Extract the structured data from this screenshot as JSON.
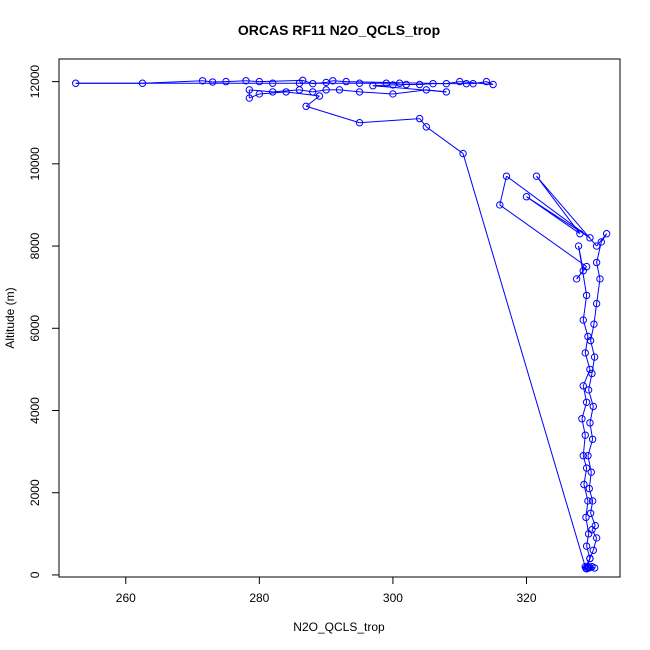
{
  "chart_data": {
    "type": "scatter",
    "title": "ORCAS RF11 N2O_QCLS_trop",
    "xlabel": "N2O_QCLS_trop",
    "ylabel": "Altitude (m)",
    "xlim": [
      250,
      334
    ],
    "ylim": [
      -50,
      12550
    ],
    "x_ticks": [
      260,
      280,
      300,
      320
    ],
    "y_ticks": [
      0,
      2000,
      4000,
      6000,
      8000,
      10000,
      12000
    ],
    "grid": false,
    "series": [
      {
        "color": "#0000ff",
        "marker": "open-circle",
        "line": true,
        "points": [
          [
            329.0,
            150
          ],
          [
            329.2,
            200
          ],
          [
            329.5,
            180
          ],
          [
            328.9,
            160
          ],
          [
            329.3,
            170
          ],
          [
            329.8,
            200
          ],
          [
            330.2,
            170
          ],
          [
            329.1,
            190
          ],
          [
            329.5,
            400
          ],
          [
            330.0,
            600
          ],
          [
            330.5,
            900
          ],
          [
            329.8,
            1100
          ],
          [
            330.3,
            1200
          ],
          [
            329.6,
            1500
          ],
          [
            329.9,
            1800
          ],
          [
            329.4,
            2100
          ],
          [
            329.7,
            2500
          ],
          [
            329.2,
            2900
          ],
          [
            329.9,
            3300
          ],
          [
            329.5,
            3700
          ],
          [
            330.0,
            4100
          ],
          [
            329.3,
            4500
          ],
          [
            329.8,
            4900
          ],
          [
            330.2,
            5300
          ],
          [
            329.6,
            5700
          ],
          [
            330.1,
            6100
          ],
          [
            330.5,
            6600
          ],
          [
            331.0,
            7200
          ],
          [
            330.5,
            7600
          ],
          [
            331.2,
            8100
          ],
          [
            332.0,
            8300
          ],
          [
            330.5,
            8000
          ],
          [
            321.5,
            9700
          ],
          [
            328.0,
            8300
          ],
          [
            320.0,
            9200
          ],
          [
            329.5,
            8200
          ],
          [
            317.0,
            9700
          ],
          [
            316.0,
            9000
          ],
          [
            329.0,
            7500
          ],
          [
            327.5,
            7200
          ],
          [
            328.5,
            7400
          ],
          [
            327.8,
            8000
          ],
          [
            329.0,
            6800
          ],
          [
            328.5,
            6200
          ],
          [
            329.2,
            5800
          ],
          [
            328.8,
            5400
          ],
          [
            329.5,
            5000
          ],
          [
            328.5,
            4600
          ],
          [
            329.0,
            4200
          ],
          [
            328.3,
            3800
          ],
          [
            328.8,
            3400
          ],
          [
            328.5,
            2900
          ],
          [
            329.0,
            2600
          ],
          [
            328.6,
            2200
          ],
          [
            329.2,
            1800
          ],
          [
            328.9,
            1400
          ],
          [
            329.3,
            1000
          ],
          [
            329.0,
            700
          ],
          [
            329.5,
            400
          ],
          [
            328.8,
            200
          ],
          [
            310.5,
            10250
          ],
          [
            305.0,
            10900
          ],
          [
            304.0,
            11100
          ],
          [
            295.0,
            11000
          ],
          [
            287.0,
            11400
          ],
          [
            289.0,
            11650
          ],
          [
            284.0,
            11750
          ],
          [
            280.0,
            11700
          ],
          [
            278.5,
            11600
          ],
          [
            278.5,
            11800
          ],
          [
            282.0,
            11750
          ],
          [
            286.0,
            11800
          ],
          [
            288.0,
            11750
          ],
          [
            290.0,
            11800
          ],
          [
            292.0,
            11800
          ],
          [
            295.0,
            11750
          ],
          [
            300.0,
            11700
          ],
          [
            305.0,
            11800
          ],
          [
            308.0,
            11750
          ],
          [
            297.0,
            11900
          ],
          [
            300.0,
            11920
          ],
          [
            302.0,
            11930
          ],
          [
            304.0,
            11930
          ],
          [
            306.0,
            11950
          ],
          [
            311.0,
            11950
          ],
          [
            312.0,
            11950
          ],
          [
            314.0,
            12000
          ],
          [
            315.0,
            11930
          ],
          [
            310.0,
            12000
          ],
          [
            308.0,
            11950
          ],
          [
            293.0,
            12000
          ],
          [
            291.0,
            12020
          ],
          [
            290.0,
            11980
          ],
          [
            288.0,
            11950
          ],
          [
            286.5,
            12030
          ],
          [
            280.0,
            12000
          ],
          [
            278.0,
            12020
          ],
          [
            275.0,
            12000
          ],
          [
            273.0,
            11990
          ],
          [
            271.5,
            12020
          ],
          [
            262.5,
            11960
          ],
          [
            252.5,
            11960
          ],
          [
            282.0,
            11960
          ],
          [
            286.0,
            11960
          ],
          [
            295.0,
            11960
          ],
          [
            299.0,
            11960
          ],
          [
            301.0,
            11960
          ]
        ]
      }
    ]
  }
}
